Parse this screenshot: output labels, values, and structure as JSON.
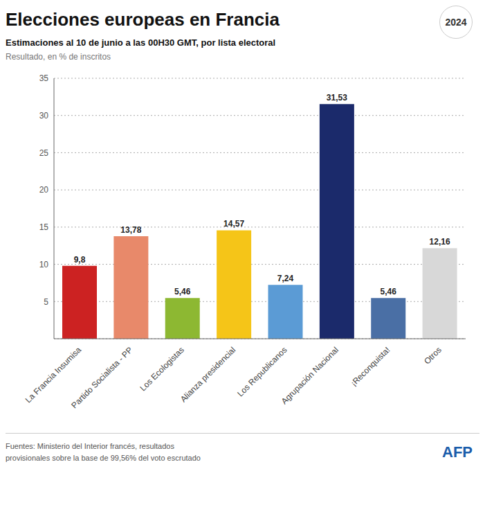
{
  "chart_data": {
    "type": "bar",
    "title": "Elecciones europeas en Francia",
    "subtitle": "Estimaciones al 10 de junio a las 00H30 GMT, por lista electoral",
    "ylabel": "Resultado, en % de inscritos",
    "categories": [
      "La Francia Insumisa",
      "Partido Socialista - PP",
      "Los Ecologistas",
      "Alianza presidencial",
      "Los Republicanos",
      "Agrupación Nacional",
      "¡Reconquista!",
      "Otros"
    ],
    "values": [
      9.8,
      13.78,
      5.46,
      14.57,
      7.24,
      31.53,
      5.46,
      12.16
    ],
    "value_labels": [
      "9,8",
      "13,78",
      "5,46",
      "14,57",
      "7,24",
      "31,53",
      "5,46",
      "12,16"
    ],
    "colors": [
      "#cc2222",
      "#e8896a",
      "#8db832",
      "#f5c518",
      "#5b9bd5",
      "#1b2a6b",
      "#4a6fa5",
      "#d8d8d8"
    ],
    "ylim": [
      0,
      35
    ],
    "yticks": [
      5,
      10,
      15,
      20,
      25,
      30,
      35
    ],
    "grid": true,
    "data_labels": true,
    "annotations": [
      "2024",
      "Fuentes: Ministerio del Interior francés, resultados\nprovisionales sobre la base de 99,56% del voto escrutado",
      "AFP"
    ]
  }
}
